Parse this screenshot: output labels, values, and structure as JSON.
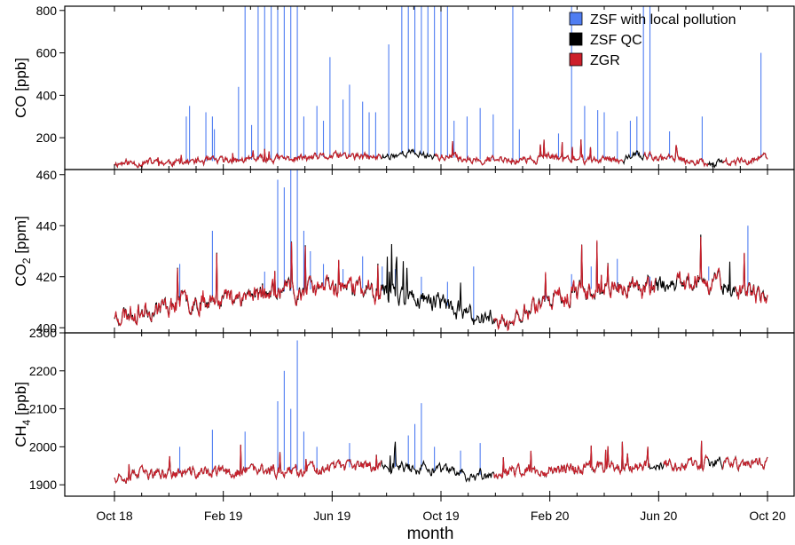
{
  "chart_data": {
    "type": "line",
    "xlabel": "month",
    "x_ticks": [
      "Oct 18",
      "Feb 19",
      "Jun 19",
      "Oct 19",
      "Feb 20",
      "Jun 20",
      "Oct 20"
    ],
    "x_range": [
      "2018-10-01",
      "2020-10-01"
    ],
    "legend": {
      "placement": "top-right",
      "entries": [
        {
          "label": "ZSF with local pollution",
          "color": "#4f7df2"
        },
        {
          "label": "ZSF QC",
          "color": "#000000"
        },
        {
          "label": "ZGR",
          "color": "#cc1f2b"
        }
      ]
    },
    "panels": [
      {
        "id": "co",
        "ylabel": {
          "main": "CO [ppb]",
          "base": "",
          "sub": "",
          "suffix": ""
        },
        "ylim": [
          50,
          820
        ],
        "yticks": [
          200,
          400,
          600,
          800
        ],
        "ytick_labels": [
          "200",
          "400",
          "600",
          "800"
        ],
        "baseline": [
          [
            0,
            80
          ],
          [
            0.1,
            85
          ],
          [
            0.2,
            95
          ],
          [
            0.3,
            105
          ],
          [
            0.35,
            115
          ],
          [
            0.4,
            105
          ],
          [
            0.45,
            130
          ],
          [
            0.5,
            110
          ],
          [
            0.55,
            100
          ],
          [
            0.58,
            95
          ],
          [
            0.62,
            90
          ],
          [
            0.67,
            110
          ],
          [
            0.72,
            95
          ],
          [
            0.78,
            100
          ],
          [
            0.8,
            120
          ],
          [
            0.82,
            110
          ],
          [
            0.87,
            95
          ],
          [
            0.92,
            80
          ],
          [
            0.95,
            85
          ],
          [
            1,
            110
          ]
        ],
        "noise": 28,
        "seed": 11,
        "qc_gaps": [
          [
            0.41,
            0.49
          ],
          [
            0.78,
            0.81
          ],
          [
            0.91,
            0.93
          ]
        ],
        "spikes": [
          [
            0.11,
            300
          ],
          [
            0.115,
            350
          ],
          [
            0.14,
            320
          ],
          [
            0.15,
            300
          ],
          [
            0.153,
            240
          ],
          [
            0.19,
            440
          ],
          [
            0.2,
            820
          ],
          [
            0.21,
            260
          ],
          [
            0.22,
            820
          ],
          [
            0.23,
            820
          ],
          [
            0.24,
            820
          ],
          [
            0.25,
            820
          ],
          [
            0.26,
            820
          ],
          [
            0.27,
            820
          ],
          [
            0.28,
            820
          ],
          [
            0.29,
            300
          ],
          [
            0.31,
            350
          ],
          [
            0.32,
            280
          ],
          [
            0.33,
            580
          ],
          [
            0.35,
            380
          ],
          [
            0.36,
            450
          ],
          [
            0.38,
            370
          ],
          [
            0.39,
            320
          ],
          [
            0.4,
            320
          ],
          [
            0.42,
            640
          ],
          [
            0.44,
            820
          ],
          [
            0.45,
            820
          ],
          [
            0.46,
            820
          ],
          [
            0.47,
            820
          ],
          [
            0.48,
            820
          ],
          [
            0.49,
            820
          ],
          [
            0.5,
            820
          ],
          [
            0.51,
            820
          ],
          [
            0.52,
            280
          ],
          [
            0.54,
            300
          ],
          [
            0.56,
            340
          ],
          [
            0.58,
            310
          ],
          [
            0.61,
            820
          ],
          [
            0.62,
            240
          ],
          [
            0.68,
            220
          ],
          [
            0.7,
            820
          ],
          [
            0.72,
            350
          ],
          [
            0.74,
            330
          ],
          [
            0.75,
            320
          ],
          [
            0.77,
            230
          ],
          [
            0.79,
            280
          ],
          [
            0.8,
            300
          ],
          [
            0.81,
            820
          ],
          [
            0.82,
            820
          ],
          [
            0.85,
            230
          ],
          [
            0.9,
            300
          ],
          [
            0.99,
            600
          ]
        ]
      },
      {
        "id": "co2",
        "ylabel": {
          "main": "",
          "base": "CO",
          "sub": "2",
          "suffix": " [ppm]"
        },
        "ylim": [
          398,
          462
        ],
        "yticks": [
          400,
          420,
          440,
          460
        ],
        "ytick_labels": [
          "400",
          "420",
          "440",
          "460"
        ],
        "baseline": [
          [
            0,
            405
          ],
          [
            0.05,
            407
          ],
          [
            0.1,
            410
          ],
          [
            0.2,
            413
          ],
          [
            0.3,
            415
          ],
          [
            0.35,
            416
          ],
          [
            0.4,
            415
          ],
          [
            0.45,
            412
          ],
          [
            0.5,
            410
          ],
          [
            0.55,
            403
          ],
          [
            0.58,
            405
          ],
          [
            0.6,
            400
          ],
          [
            0.62,
            405
          ],
          [
            0.65,
            410
          ],
          [
            0.7,
            414
          ],
          [
            0.75,
            416
          ],
          [
            0.8,
            416
          ],
          [
            0.85,
            417
          ],
          [
            0.9,
            419
          ],
          [
            0.95,
            416
          ],
          [
            1,
            410
          ]
        ],
        "noise": 6,
        "seed": 23,
        "qc_gaps": [
          [
            0.41,
            0.58
          ],
          [
            0.83,
            0.86
          ],
          [
            0.93,
            0.95
          ]
        ],
        "spikes": [
          [
            0.1,
            425
          ],
          [
            0.15,
            438
          ],
          [
            0.23,
            422
          ],
          [
            0.25,
            458
          ],
          [
            0.26,
            455
          ],
          [
            0.27,
            462
          ],
          [
            0.28,
            462
          ],
          [
            0.29,
            438
          ],
          [
            0.3,
            430
          ],
          [
            0.32,
            425
          ],
          [
            0.35,
            423
          ],
          [
            0.38,
            428
          ],
          [
            0.41,
            424
          ],
          [
            0.43,
            423
          ],
          [
            0.47,
            420
          ],
          [
            0.51,
            418
          ],
          [
            0.55,
            424
          ],
          [
            0.66,
            419
          ],
          [
            0.7,
            421
          ],
          [
            0.73,
            424
          ],
          [
            0.77,
            427
          ],
          [
            0.82,
            420
          ],
          [
            0.88,
            420
          ],
          [
            0.91,
            424
          ],
          [
            0.97,
            440
          ]
        ]
      },
      {
        "id": "ch4",
        "ylabel": {
          "main": "",
          "base": "CH",
          "sub": "4",
          "suffix": " [ppb]"
        },
        "ylim": [
          1870,
          2300
        ],
        "yticks": [
          1900,
          2000,
          2100,
          2200,
          2300
        ],
        "ytick_labels": [
          "1900",
          "2000",
          "2100",
          "2200",
          "2300"
        ],
        "baseline": [
          [
            0,
            1925
          ],
          [
            0.1,
            1930
          ],
          [
            0.2,
            1935
          ],
          [
            0.3,
            1940
          ],
          [
            0.4,
            1950
          ],
          [
            0.45,
            1945
          ],
          [
            0.5,
            1935
          ],
          [
            0.55,
            1925
          ],
          [
            0.58,
            1930
          ],
          [
            0.62,
            1935
          ],
          [
            0.7,
            1945
          ],
          [
            0.8,
            1950
          ],
          [
            0.9,
            1955
          ],
          [
            0.95,
            1955
          ],
          [
            1,
            1960
          ]
        ],
        "noise": 25,
        "seed": 37,
        "qc_gaps": [
          [
            0.41,
            0.58
          ],
          [
            0.82,
            0.84
          ],
          [
            0.91,
            0.93
          ]
        ],
        "spikes": [
          [
            0.1,
            2000
          ],
          [
            0.15,
            2045
          ],
          [
            0.2,
            2040
          ],
          [
            0.25,
            2120
          ],
          [
            0.26,
            2200
          ],
          [
            0.27,
            2100
          ],
          [
            0.28,
            2280
          ],
          [
            0.29,
            2040
          ],
          [
            0.31,
            2000
          ],
          [
            0.36,
            2010
          ],
          [
            0.43,
            2000
          ],
          [
            0.45,
            2030
          ],
          [
            0.46,
            2060
          ],
          [
            0.47,
            2115
          ],
          [
            0.49,
            2000
          ],
          [
            0.53,
            1990
          ],
          [
            0.56,
            2010
          ]
        ]
      }
    ]
  }
}
